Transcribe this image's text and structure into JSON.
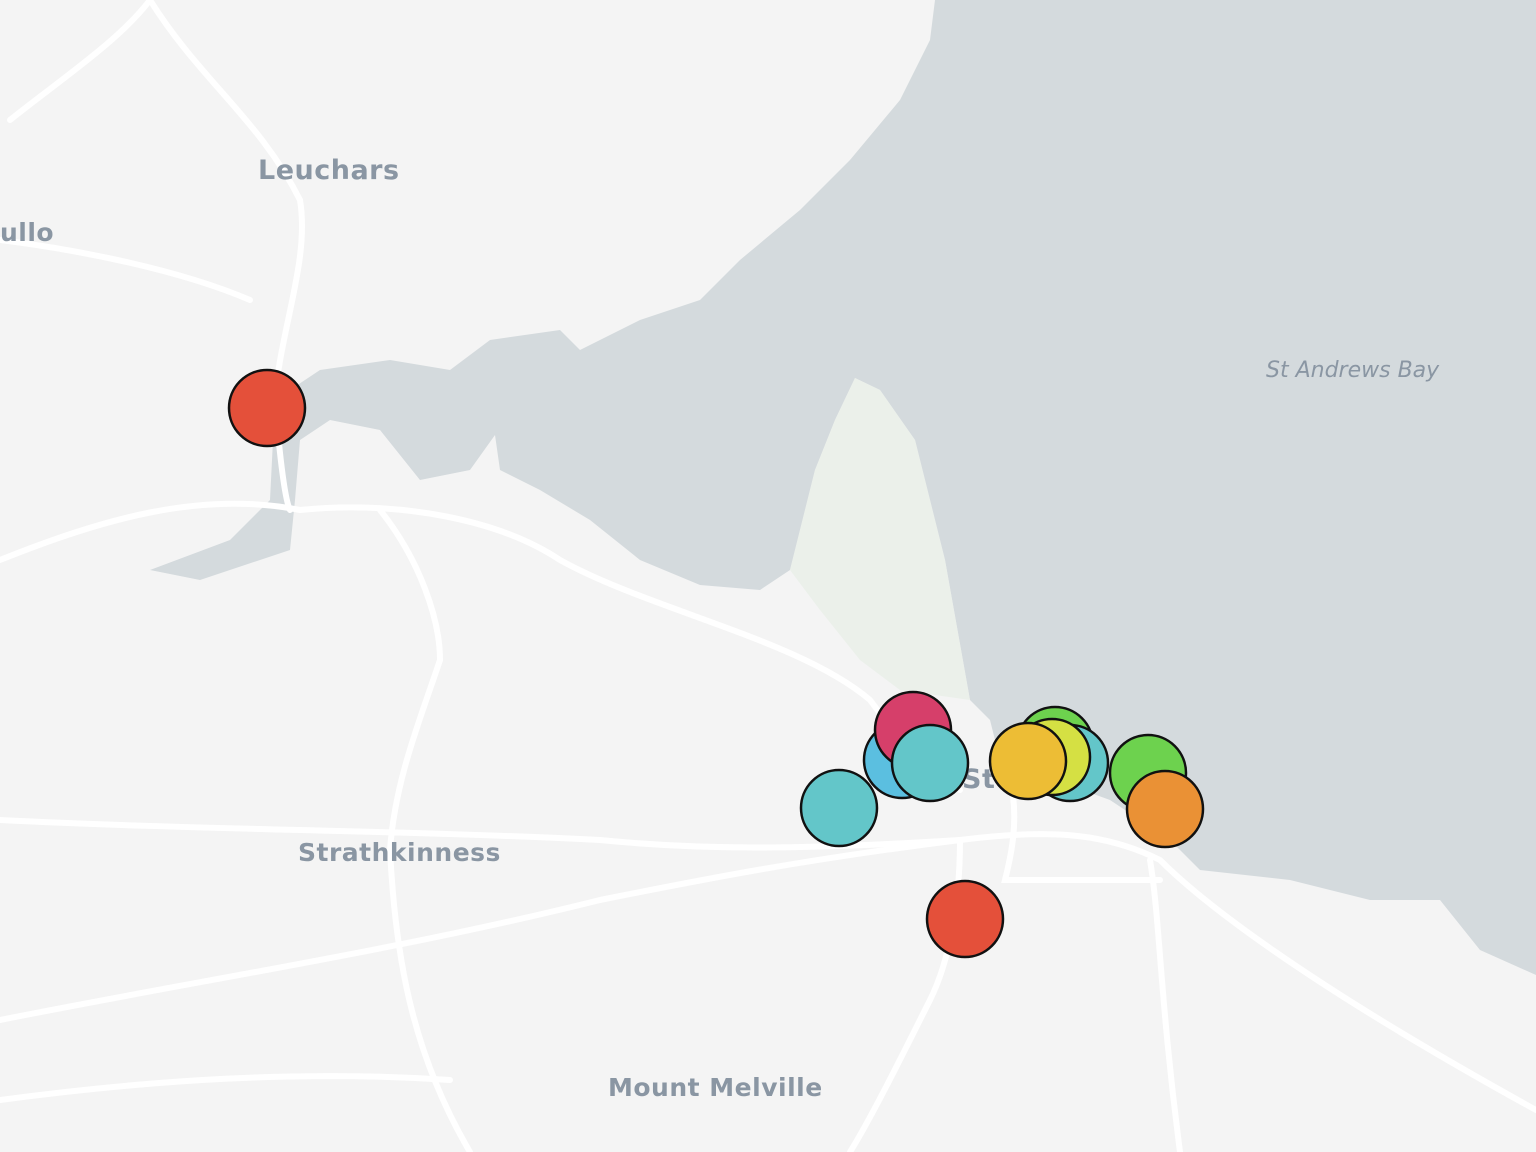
{
  "map": {
    "colors": {
      "land": "#f4f4f4",
      "water": "#d4dadd",
      "road": "#ffffff",
      "park": "#e8eee6",
      "label": "#8a96a3"
    },
    "places": [
      {
        "id": "leuchars",
        "label": "Leuchars"
      },
      {
        "id": "pitcullo",
        "label": "ullo"
      },
      {
        "id": "strathkinness",
        "label": "Strathkinness"
      },
      {
        "id": "mount-melville",
        "label": "Mount Melville"
      },
      {
        "id": "st-andrews",
        "label": "St"
      }
    ],
    "water_labels": [
      {
        "id": "st-andrews-bay",
        "label": "St Andrews Bay"
      }
    ],
    "markers": [
      {
        "color": "#e4503a"
      },
      {
        "color": "#e4503a"
      },
      {
        "color": "#63c6c9"
      },
      {
        "color": "#5bbfe0"
      },
      {
        "color": "#d63f6a"
      },
      {
        "color": "#63c6c9"
      },
      {
        "color": "#6dd24e"
      },
      {
        "color": "#63c6c9"
      },
      {
        "color": "#d5e043"
      },
      {
        "color": "#edbd35"
      },
      {
        "color": "#6dd24e"
      },
      {
        "color": "#ea9135"
      }
    ]
  }
}
